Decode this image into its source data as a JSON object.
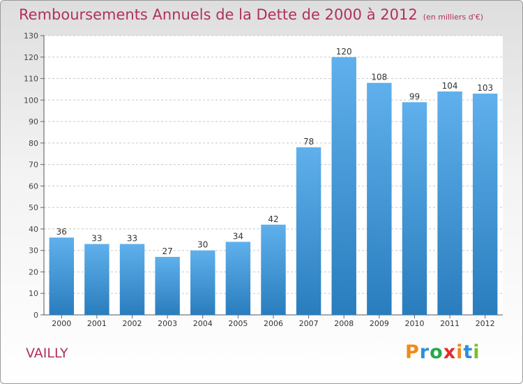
{
  "header": {
    "title": "Remboursements Annuels de la Dette de 2000 à 2012",
    "unit": "(en milliers d'€)"
  },
  "footer": {
    "town": "VAILLY",
    "logo": "Proxiti",
    "logo_colors": [
      "#f08a1c",
      "#2b8fd8",
      "#27a84a",
      "#e52b2b",
      "#f08a1c",
      "#2b8fd8",
      "#7bbf2a"
    ]
  },
  "colors": {
    "title": "#b03060",
    "bar_top": "#5fb0ec",
    "bar_bottom": "#2a7dbd",
    "grid": "#c8c8c8"
  },
  "chart_data": {
    "type": "bar",
    "title": "Remboursements Annuels de la Dette de 2000 à 2012",
    "xlabel": "",
    "ylabel": "",
    "categories": [
      "2000",
      "2001",
      "2002",
      "2003",
      "2004",
      "2005",
      "2006",
      "2007",
      "2008",
      "2009",
      "2010",
      "2011",
      "2012"
    ],
    "values": [
      36,
      33,
      33,
      27,
      30,
      34,
      42,
      78,
      120,
      108,
      99,
      104,
      103
    ],
    "ylim": [
      0,
      130
    ],
    "yticks": [
      0,
      10,
      20,
      30,
      40,
      50,
      60,
      70,
      80,
      90,
      100,
      110,
      120,
      130
    ],
    "grid": true,
    "data_labels": true
  }
}
